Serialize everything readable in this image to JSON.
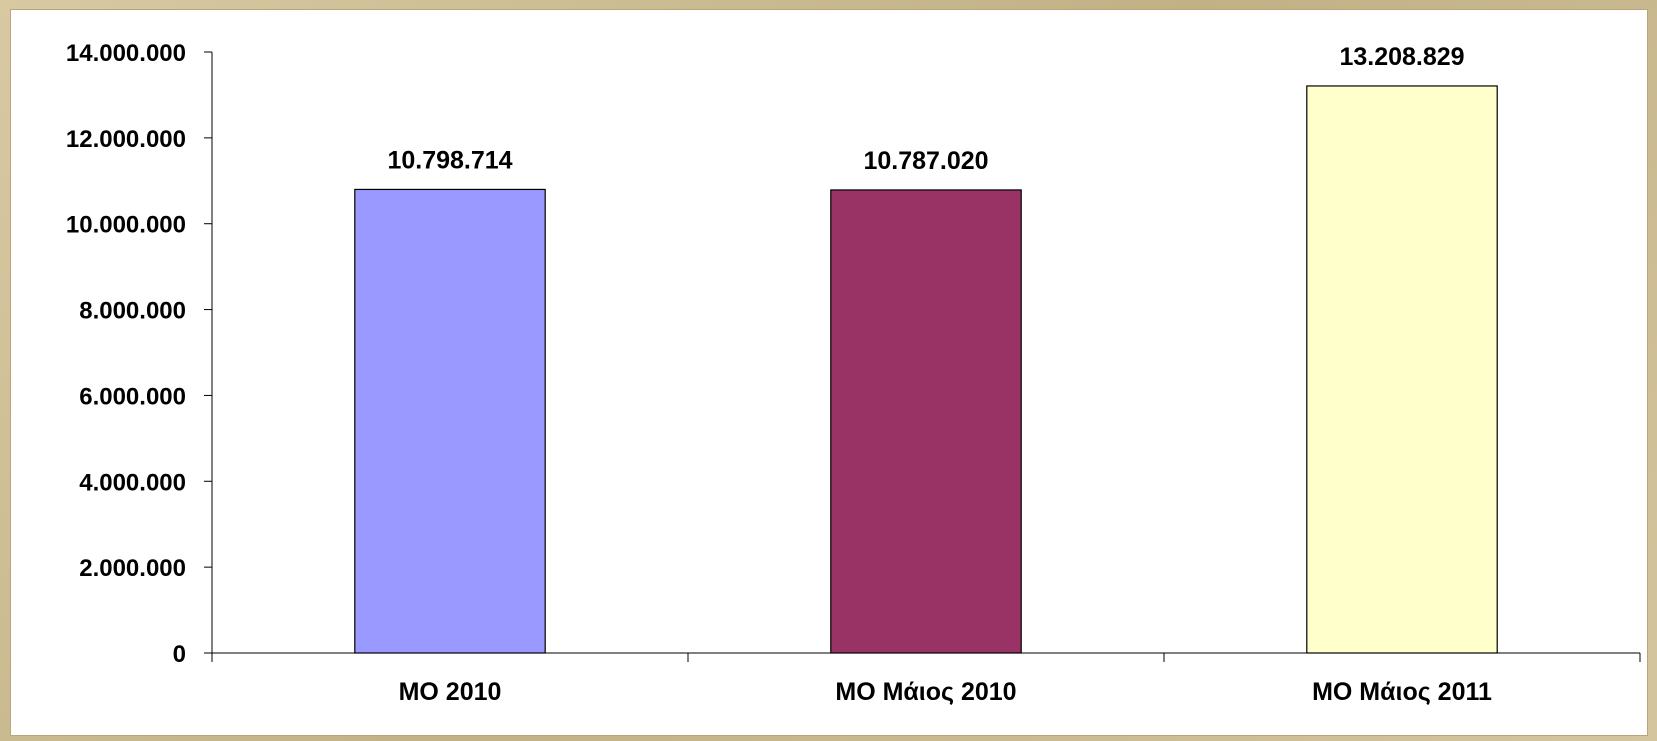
{
  "chart_data": {
    "type": "bar",
    "title": "",
    "xlabel": "",
    "ylabel": "",
    "categories": [
      "ΜΟ 2010",
      "ΜΟ Μάιος 2010",
      "ΜΟ Μάιος 2011"
    ],
    "values": [
      10798714,
      10787020,
      13208829
    ],
    "value_labels": [
      "10.798.714",
      "10.787.020",
      "13.208.829"
    ],
    "colors": [
      "#9999ff",
      "#993366",
      "#ffffcc"
    ],
    "ylim": [
      0,
      14000000
    ],
    "y_ticks": [
      0,
      2000000,
      4000000,
      6000000,
      8000000,
      10000000,
      12000000,
      14000000
    ],
    "y_tick_labels": [
      "0",
      "2.000.000",
      "4.000.000",
      "6.000.000",
      "8.000.000",
      "10.000.000",
      "12.000.000",
      "14.000.000"
    ],
    "grid": false,
    "legend": "none"
  }
}
